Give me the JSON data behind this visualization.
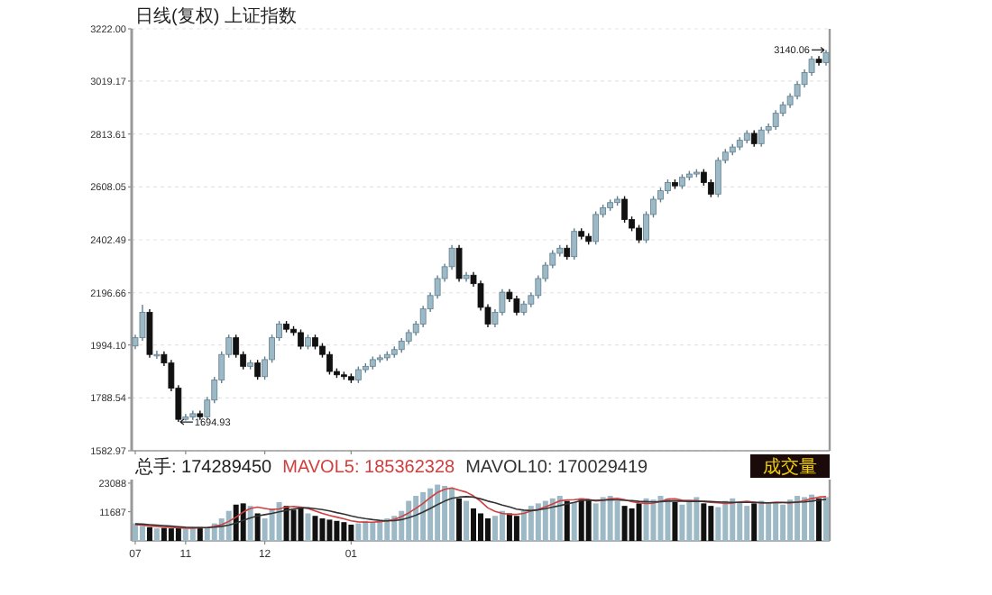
{
  "chart_data": [
    {
      "type": "candlestick",
      "title": "日线(复权)  上证指数",
      "categories": [
        "07",
        null,
        null,
        null,
        null,
        null,
        null,
        "11",
        null,
        null,
        null,
        null,
        null,
        null,
        null,
        null,
        null,
        null,
        "12",
        null,
        null,
        null,
        null,
        null,
        null,
        null,
        null,
        null,
        null,
        null,
        "01",
        null,
        null,
        null,
        null,
        null,
        null,
        null,
        null,
        null,
        null,
        null,
        null,
        null,
        null,
        null,
        null,
        null,
        null,
        null,
        null,
        null,
        null,
        null,
        null,
        null,
        null,
        null,
        null,
        null,
        null,
        null,
        null,
        null,
        null,
        null,
        null,
        null,
        null,
        null,
        null,
        null,
        null,
        null,
        null,
        null,
        null,
        null,
        null,
        null,
        null,
        null,
        null,
        null,
        null,
        null,
        null,
        null,
        null,
        null,
        null,
        null,
        null,
        null,
        null,
        null,
        null
      ],
      "series": [
        {
          "colors": [
            "#9db9c6",
            "#9db9c6",
            "#111111",
            "#9db9c6",
            "#111111",
            "#111111",
            "#111111",
            "#9db9c6",
            "#9db9c6",
            "#111111",
            "#9db9c6",
            "#9db9c6",
            "#9db9c6",
            "#9db9c6",
            "#111111",
            "#111111",
            "#9db9c6",
            "#111111",
            "#9db9c6",
            "#9db9c6",
            "#9db9c6",
            "#111111",
            "#111111",
            "#111111",
            "#9db9c6",
            "#111111",
            "#111111",
            "#111111",
            "#111111",
            "#111111",
            "#111111",
            "#9db9c6",
            "#9db9c6",
            "#9db9c6",
            "#9db9c6",
            "#9db9c6",
            "#9db9c6",
            "#9db9c6",
            "#9db9c6",
            "#9db9c6",
            "#9db9c6",
            "#9db9c6",
            "#9db9c6",
            "#9db9c6",
            "#9db9c6",
            "#111111",
            "#9db9c6",
            "#111111",
            "#111111",
            "#111111",
            "#9db9c6",
            "#9db9c6",
            "#111111",
            "#111111",
            "#9db9c6",
            "#9db9c6",
            "#9db9c6",
            "#9db9c6",
            "#9db9c6",
            "#9db9c6",
            "#111111",
            "#9db9c6",
            "#111111",
            "#111111",
            "#9db9c6",
            "#9db9c6",
            "#9db9c6",
            "#9db9c6",
            "#111111",
            "#111111",
            "#111111",
            "#9db9c6",
            "#9db9c6",
            "#9db9c6",
            "#9db9c6",
            "#111111",
            "#9db9c6",
            "#9db9c6",
            "#9db9c6",
            "#111111",
            "#111111",
            "#9db9c6",
            "#9db9c6",
            "#9db9c6",
            "#9db9c6",
            "#9db9c6",
            "#111111",
            "#9db9c6",
            "#9db9c6",
            "#9db9c6",
            "#9db9c6",
            "#9db9c6",
            "#9db9c6",
            "#9db9c6",
            "#9db9c6",
            "#111111",
            "#9db9c6"
          ],
          "ohlc": [
            [
              1990,
              2034,
              1978,
              2022
            ],
            [
              2022,
              2150,
              2010,
              2121
            ],
            [
              2121,
              2133,
              1945,
              1957
            ],
            [
              1957,
              1972,
              1940,
              1957
            ],
            [
              1957,
              1969,
              1912,
              1924
            ],
            [
              1924,
              1936,
              1814,
              1826
            ],
            [
              1826,
              1838,
              1694.93,
              1705
            ],
            [
              1705,
              1726,
              1700,
              1714
            ],
            [
              1714,
              1739,
              1702,
              1727
            ],
            [
              1727,
              1739,
              1703,
              1715
            ],
            [
              1715,
              1792,
              1703,
              1780
            ],
            [
              1780,
              1870,
              1768,
              1858
            ],
            [
              1858,
              1969,
              1846,
              1957
            ],
            [
              1957,
              2034,
              1945,
              2022
            ],
            [
              2022,
              2034,
              1945,
              1957
            ],
            [
              1957,
              1969,
              1899,
              1911
            ],
            [
              1911,
              1936,
              1899,
              1924
            ],
            [
              1924,
              1936,
              1859,
              1871
            ],
            [
              1871,
              1949,
              1859,
              1937
            ],
            [
              1937,
              2034,
              1925,
              2022
            ],
            [
              2022,
              2087,
              2010,
              2075
            ],
            [
              2075,
              2087,
              2043,
              2055
            ],
            [
              2055,
              2067,
              2030,
              2042
            ],
            [
              2042,
              2054,
              1977,
              1989
            ],
            [
              1989,
              2034,
              1977,
              2022
            ],
            [
              2022,
              2034,
              1977,
              1989
            ],
            [
              1989,
              2001,
              1945,
              1957
            ],
            [
              1957,
              1969,
              1879,
              1891
            ],
            [
              1891,
              1903,
              1866,
              1878
            ],
            [
              1878,
              1890,
              1859,
              1871
            ],
            [
              1871,
              1883,
              1846,
              1858
            ],
            [
              1858,
              1910,
              1846,
              1898
            ],
            [
              1898,
              1923,
              1886,
              1911
            ],
            [
              1911,
              1949,
              1899,
              1937
            ],
            [
              1937,
              1956,
              1925,
              1944
            ],
            [
              1944,
              1969,
              1932,
              1957
            ],
            [
              1957,
              1988,
              1945,
              1976
            ],
            [
              1976,
              2021,
              1964,
              2009
            ],
            [
              2009,
              2054,
              1997,
              2042
            ],
            [
              2042,
              2087,
              2030,
              2075
            ],
            [
              2075,
              2146,
              2063,
              2134
            ],
            [
              2134,
              2198,
              2122,
              2186
            ],
            [
              2186,
              2264,
              2174,
              2252
            ],
            [
              2252,
              2310,
              2240,
              2298
            ],
            [
              2298,
              2382,
              2286,
              2370
            ],
            [
              2370,
              2382,
              2240,
              2252
            ],
            [
              2252,
              2277,
              2240,
              2265
            ],
            [
              2265,
              2277,
              2220,
              2232
            ],
            [
              2232,
              2244,
              2128,
              2140
            ],
            [
              2140,
              2152,
              2063,
              2075
            ],
            [
              2075,
              2133,
              2063,
              2121
            ],
            [
              2121,
              2211,
              2109,
              2199
            ],
            [
              2199,
              2211,
              2161,
              2173
            ],
            [
              2173,
              2185,
              2109,
              2121
            ],
            [
              2121,
              2165,
              2109,
              2153
            ],
            [
              2153,
              2198,
              2141,
              2186
            ],
            [
              2186,
              2264,
              2174,
              2252
            ],
            [
              2252,
              2316,
              2240,
              2304
            ],
            [
              2304,
              2362,
              2292,
              2350
            ],
            [
              2350,
              2382,
              2338,
              2370
            ],
            [
              2370,
              2382,
              2325,
              2337
            ],
            [
              2337,
              2447,
              2325,
              2435
            ],
            [
              2435,
              2447,
              2404,
              2416
            ],
            [
              2416,
              2428,
              2384,
              2396
            ],
            [
              2396,
              2513,
              2384,
              2501
            ],
            [
              2501,
              2539,
              2489,
              2527
            ],
            [
              2527,
              2559,
              2515,
              2547
            ],
            [
              2547,
              2572,
              2535,
              2560
            ],
            [
              2560,
              2572,
              2469,
              2481
            ],
            [
              2481,
              2493,
              2436,
              2448
            ],
            [
              2448,
              2460,
              2390,
              2402
            ],
            [
              2402,
              2513,
              2390,
              2501
            ],
            [
              2501,
              2572,
              2489,
              2560
            ],
            [
              2560,
              2605,
              2548,
              2593
            ],
            [
              2593,
              2637,
              2581,
              2625
            ],
            [
              2625,
              2637,
              2600,
              2612
            ],
            [
              2612,
              2657,
              2600,
              2645
            ],
            [
              2645,
              2670,
              2633,
              2658
            ],
            [
              2658,
              2677,
              2646,
              2665
            ],
            [
              2665,
              2677,
              2613,
              2625
            ],
            [
              2625,
              2637,
              2568,
              2580
            ],
            [
              2580,
              2723,
              2568,
              2711
            ],
            [
              2711,
              2755,
              2699,
              2743
            ],
            [
              2743,
              2775,
              2731,
              2763
            ],
            [
              2763,
              2801,
              2751,
              2789
            ],
            [
              2789,
              2828,
              2777,
              2816
            ],
            [
              2816,
              2828,
              2764,
              2776
            ],
            [
              2776,
              2841,
              2764,
              2829
            ],
            [
              2829,
              2854,
              2817,
              2842
            ],
            [
              2842,
              2906,
              2830,
              2894
            ],
            [
              2894,
              2939,
              2882,
              2927
            ],
            [
              2927,
              2972,
              2915,
              2960
            ],
            [
              2960,
              3018,
              2948,
              3006
            ],
            [
              3006,
              3064,
              2994,
              3052
            ],
            [
              3052,
              3116,
              3040,
              3104
            ],
            [
              3104,
              3116,
              3079,
              3091
            ],
            [
              3091,
              3140.06,
              3079,
              3130
            ]
          ]
        }
      ],
      "ylim": [
        1582.97,
        3222.0
      ],
      "yticks": [
        {
          "value": 1582.97,
          "label": "1582.97"
        },
        {
          "value": 1788.54,
          "label": "1788.54"
        },
        {
          "value": 1994.1,
          "label": "1994.10"
        },
        {
          "value": 2196.66,
          "label": "2196.66"
        },
        {
          "value": 2402.49,
          "label": "2402.49"
        },
        {
          "value": 2608.05,
          "label": "2608.05"
        },
        {
          "value": 2813.61,
          "label": "2813.61"
        },
        {
          "value": 3019.17,
          "label": "3019.17"
        },
        {
          "value": 3222.0,
          "label": "3222.00"
        }
      ],
      "grid": "y",
      "tick_labels": "y",
      "annotations": [
        "1694.93",
        "3140.06"
      ]
    },
    {
      "type": "bar",
      "title": "总手: 174289450",
      "categories": [
        "07",
        null,
        null,
        null,
        null,
        null,
        null,
        "11",
        null,
        null,
        null,
        null,
        null,
        null,
        null,
        null,
        null,
        null,
        "12",
        null,
        null,
        null,
        null,
        null,
        null,
        null,
        null,
        null,
        null,
        null,
        "01",
        null,
        null,
        null,
        null,
        null,
        null,
        null,
        null,
        null,
        null,
        null,
        null,
        null,
        null,
        null,
        null,
        null,
        null,
        null,
        null,
        null,
        null,
        null,
        null,
        null,
        null,
        null,
        null,
        null,
        null,
        null,
        null,
        null,
        null,
        null,
        null,
        null,
        null,
        null,
        null,
        null,
        null,
        null,
        null,
        null,
        null,
        null,
        null,
        null,
        null,
        null,
        null,
        null,
        null,
        null,
        null,
        null,
        null,
        null,
        null,
        null,
        null,
        null,
        null,
        null,
        null
      ],
      "series": [
        {
          "colors": [
            "#9db9c6",
            "#9db9c6",
            "#111111",
            "#9db9c6",
            "#111111",
            "#111111",
            "#111111",
            "#9db9c6",
            "#9db9c6",
            "#111111",
            "#9db9c6",
            "#9db9c6",
            "#9db9c6",
            "#9db9c6",
            "#111111",
            "#111111",
            "#9db9c6",
            "#111111",
            "#9db9c6",
            "#9db9c6",
            "#9db9c6",
            "#111111",
            "#111111",
            "#111111",
            "#9db9c6",
            "#111111",
            "#111111",
            "#111111",
            "#111111",
            "#111111",
            "#111111",
            "#9db9c6",
            "#9db9c6",
            "#9db9c6",
            "#9db9c6",
            "#9db9c6",
            "#9db9c6",
            "#9db9c6",
            "#9db9c6",
            "#9db9c6",
            "#9db9c6",
            "#9db9c6",
            "#9db9c6",
            "#9db9c6",
            "#9db9c6",
            "#111111",
            "#9db9c6",
            "#111111",
            "#111111",
            "#111111",
            "#9db9c6",
            "#9db9c6",
            "#111111",
            "#111111",
            "#9db9c6",
            "#9db9c6",
            "#9db9c6",
            "#9db9c6",
            "#9db9c6",
            "#9db9c6",
            "#111111",
            "#9db9c6",
            "#111111",
            "#111111",
            "#9db9c6",
            "#9db9c6",
            "#9db9c6",
            "#9db9c6",
            "#111111",
            "#111111",
            "#111111",
            "#9db9c6",
            "#9db9c6",
            "#9db9c6",
            "#9db9c6",
            "#111111",
            "#9db9c6",
            "#9db9c6",
            "#9db9c6",
            "#111111",
            "#111111",
            "#9db9c6",
            "#9db9c6",
            "#9db9c6",
            "#9db9c6",
            "#9db9c6",
            "#111111",
            "#9db9c6",
            "#9db9c6",
            "#9db9c6",
            "#9db9c6",
            "#9db9c6",
            "#9db9c6",
            "#9db9c6",
            "#9db9c6",
            "#111111",
            "#9db9c6"
          ],
          "values": [
            7000,
            6000,
            5500,
            5000,
            5200,
            5000,
            5300,
            4800,
            5000,
            5500,
            5200,
            7000,
            9000,
            12000,
            14500,
            15000,
            14000,
            11000,
            9000,
            13000,
            15500,
            14000,
            12500,
            13000,
            11000,
            10000,
            9000,
            8500,
            8000,
            7500,
            6500,
            7000,
            8000,
            7500,
            8500,
            9000,
            10000,
            12000,
            16000,
            18000,
            19500,
            21000,
            22500,
            22000,
            21000,
            17000,
            16000,
            13000,
            11000,
            9000,
            10000,
            12000,
            11000,
            10000,
            12000,
            14000,
            15000,
            16000,
            17000,
            18000,
            16000,
            15500,
            17000,
            16500,
            15000,
            17500,
            18000,
            16000,
            14000,
            13000,
            15000,
            17000,
            16500,
            18000,
            17000,
            15500,
            14500,
            16000,
            17500,
            15000,
            14000,
            13500,
            16000,
            17000,
            15500,
            14000,
            15000,
            16000,
            15500,
            15000,
            14500,
            16500,
            18000,
            17500,
            18500,
            17000,
            17500
          ]
        },
        {
          "type": "line",
          "name": "MAVOL5: 185362328",
          "color": "#d04040",
          "values": [
            6500,
            6300,
            6000,
            5800,
            5600,
            5400,
            5200,
            5100,
            5100,
            5200,
            5300,
            5800,
            6500,
            7800,
            9500,
            11500,
            13000,
            13500,
            13000,
            12500,
            12800,
            13500,
            13800,
            13500,
            13000,
            12000,
            11000,
            10200,
            9500,
            8800,
            8000,
            7600,
            7500,
            7500,
            7700,
            8000,
            8600,
            9700,
            11200,
            13000,
            15000,
            17300,
            19400,
            20600,
            21200,
            20300,
            19500,
            18000,
            15800,
            13200,
            11800,
            11000,
            10600,
            10600,
            11000,
            12000,
            12600,
            13600,
            14800,
            16000,
            16400,
            16500,
            16700,
            16600,
            16000,
            16200,
            16800,
            17000,
            16500,
            15700,
            15200,
            15000,
            15100,
            15800,
            16700,
            16800,
            16300,
            16200,
            16100,
            15700,
            15400,
            15200,
            15000,
            15100,
            15600,
            15800,
            15500,
            15100,
            15200,
            15500,
            15400,
            15100,
            15500,
            16100,
            16900,
            17500,
            17700
          ]
        },
        {
          "type": "line",
          "name": "MAVOL10: 170029419",
          "color": "#333333",
          "values": [
            6800,
            6700,
            6500,
            6300,
            6100,
            5900,
            5700,
            5500,
            5400,
            5300,
            5300,
            5500,
            5800,
            6300,
            7100,
            8200,
            9200,
            10000,
            10500,
            11000,
            11600,
            12200,
            12800,
            13200,
            13200,
            12900,
            12500,
            12000,
            11300,
            10700,
            10000,
            9400,
            8900,
            8500,
            8200,
            8000,
            8100,
            8500,
            9300,
            10300,
            11500,
            13000,
            14500,
            15900,
            17000,
            17500,
            17700,
            17500,
            16800,
            15900,
            15200,
            14300,
            13600,
            12700,
            12300,
            12100,
            12400,
            12900,
            13500,
            14100,
            14800,
            15400,
            16100,
            16300,
            16200,
            16300,
            16400,
            16400,
            16200,
            16100,
            15800,
            15700,
            15600,
            15700,
            15900,
            16000,
            15900,
            15800,
            15800,
            15800,
            15700,
            15600,
            15500,
            15400,
            15400,
            15400,
            15400,
            15300,
            15200,
            15200,
            15300,
            15400,
            15500,
            15600,
            15900,
            16300,
            16600
          ]
        }
      ],
      "ylim": [
        0,
        24500
      ],
      "yticks": [
        11687,
        23088
      ],
      "legend": "top left",
      "annotations": [
        "成交量"
      ]
    }
  ]
}
